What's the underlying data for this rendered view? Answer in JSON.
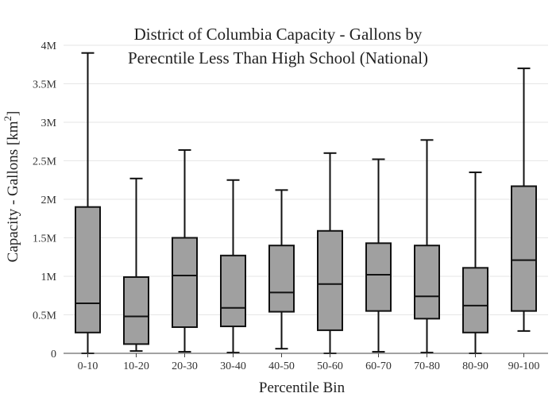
{
  "chart_data": {
    "type": "box",
    "title_lines": [
      "District of Columbia Capacity - Gallons by",
      "Perecntile Less Than High School (National)"
    ],
    "xlabel": "Percentile Bin",
    "ylabel": "Capacity - Gallons  [km",
    "ylabel_sup": "2",
    "ylabel_end": "]",
    "ylim": [
      0,
      4000000
    ],
    "yticks": [
      {
        "value": 0,
        "label": "0"
      },
      {
        "value": 500000,
        "label": "0.5M"
      },
      {
        "value": 1000000,
        "label": "1M"
      },
      {
        "value": 1500000,
        "label": "1.5M"
      },
      {
        "value": 2000000,
        "label": "2M"
      },
      {
        "value": 2500000,
        "label": "2.5M"
      },
      {
        "value": 3000000,
        "label": "3M"
      },
      {
        "value": 3500000,
        "label": "3.5M"
      },
      {
        "value": 4000000,
        "label": "4M"
      }
    ],
    "grid": true,
    "box_color": "#a0a0a0",
    "line_color": "#111111",
    "categories": [
      "0-10",
      "10-20",
      "20-30",
      "30-40",
      "40-50",
      "50-60",
      "60-70",
      "70-80",
      "80-90",
      "90-100"
    ],
    "boxes": [
      {
        "min": 0,
        "q1": 270000,
        "median": 650000,
        "q3": 1900000,
        "max": 3900000
      },
      {
        "min": 30000,
        "q1": 120000,
        "median": 480000,
        "q3": 990000,
        "max": 2270000
      },
      {
        "min": 20000,
        "q1": 340000,
        "median": 1010000,
        "q3": 1500000,
        "max": 2640000
      },
      {
        "min": 10000,
        "q1": 350000,
        "median": 590000,
        "q3": 1270000,
        "max": 2250000
      },
      {
        "min": 60000,
        "q1": 540000,
        "median": 790000,
        "q3": 1400000,
        "max": 2120000
      },
      {
        "min": 0,
        "q1": 300000,
        "median": 900000,
        "q3": 1590000,
        "max": 2600000
      },
      {
        "min": 20000,
        "q1": 550000,
        "median": 1020000,
        "q3": 1430000,
        "max": 2520000
      },
      {
        "min": 10000,
        "q1": 450000,
        "median": 740000,
        "q3": 1400000,
        "max": 2770000
      },
      {
        "min": 0,
        "q1": 270000,
        "median": 620000,
        "q3": 1110000,
        "max": 2350000
      },
      {
        "min": 290000,
        "q1": 550000,
        "median": 1210000,
        "q3": 2170000,
        "max": 3700000
      }
    ]
  }
}
